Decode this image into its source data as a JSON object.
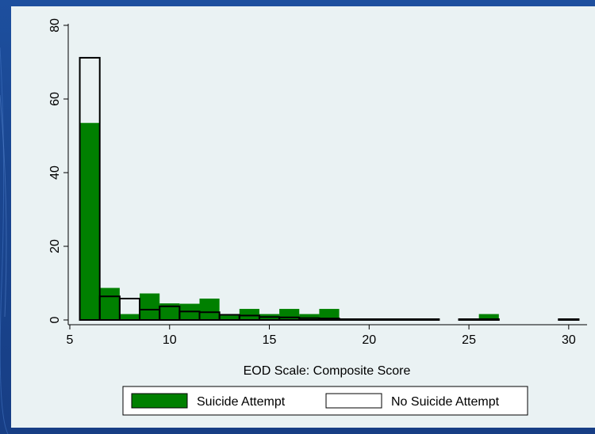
{
  "colors": {
    "suicide_attempt_fill": "#008000",
    "no_suicide_attempt_fill": "#ffffff",
    "outline": "#000000",
    "panel_background": "#eaf2f3",
    "slide_background": "#1a4690"
  },
  "chart_data": {
    "type": "bar",
    "subtype": "histogram-overlay",
    "xlabel": "EOD Scale: Composite Score",
    "ylabel": "",
    "xlim": [
      5,
      30.5
    ],
    "ylim": [
      0,
      80
    ],
    "x_ticks": [
      5,
      10,
      15,
      20,
      25,
      30
    ],
    "y_ticks": [
      0,
      20,
      40,
      60,
      80
    ],
    "bin_width": 1,
    "bin_starts": [
      5.5,
      6.5,
      7.5,
      8.5,
      9.5,
      10.5,
      11.5,
      12.5,
      13.5,
      14.5,
      15.5,
      16.5,
      17.5,
      18.5,
      19.5,
      20.5,
      21.5,
      22.5,
      24.5,
      25.5,
      29.5
    ],
    "series": [
      {
        "name": "Suicide Attempt",
        "values": [
          53.5,
          8.7,
          1.6,
          7.2,
          4.5,
          4.4,
          5.8,
          1.5,
          3.0,
          1.6,
          3.0,
          1.6,
          3.0,
          0,
          0,
          0,
          0,
          0,
          0,
          1.6,
          0
        ]
      },
      {
        "name": "No Suicide Attempt",
        "values": [
          71.2,
          6.4,
          5.8,
          2.8,
          3.7,
          2.3,
          2.1,
          1.4,
          1.2,
          0.8,
          0.7,
          0.5,
          0.4,
          0.2,
          0.1,
          0.1,
          0.1,
          0.1,
          0.1,
          0.1,
          0.1
        ]
      }
    ],
    "legend": {
      "position": "bottom",
      "entries": [
        "Suicide Attempt",
        "No Suicide Attempt"
      ]
    },
    "grid": false
  }
}
